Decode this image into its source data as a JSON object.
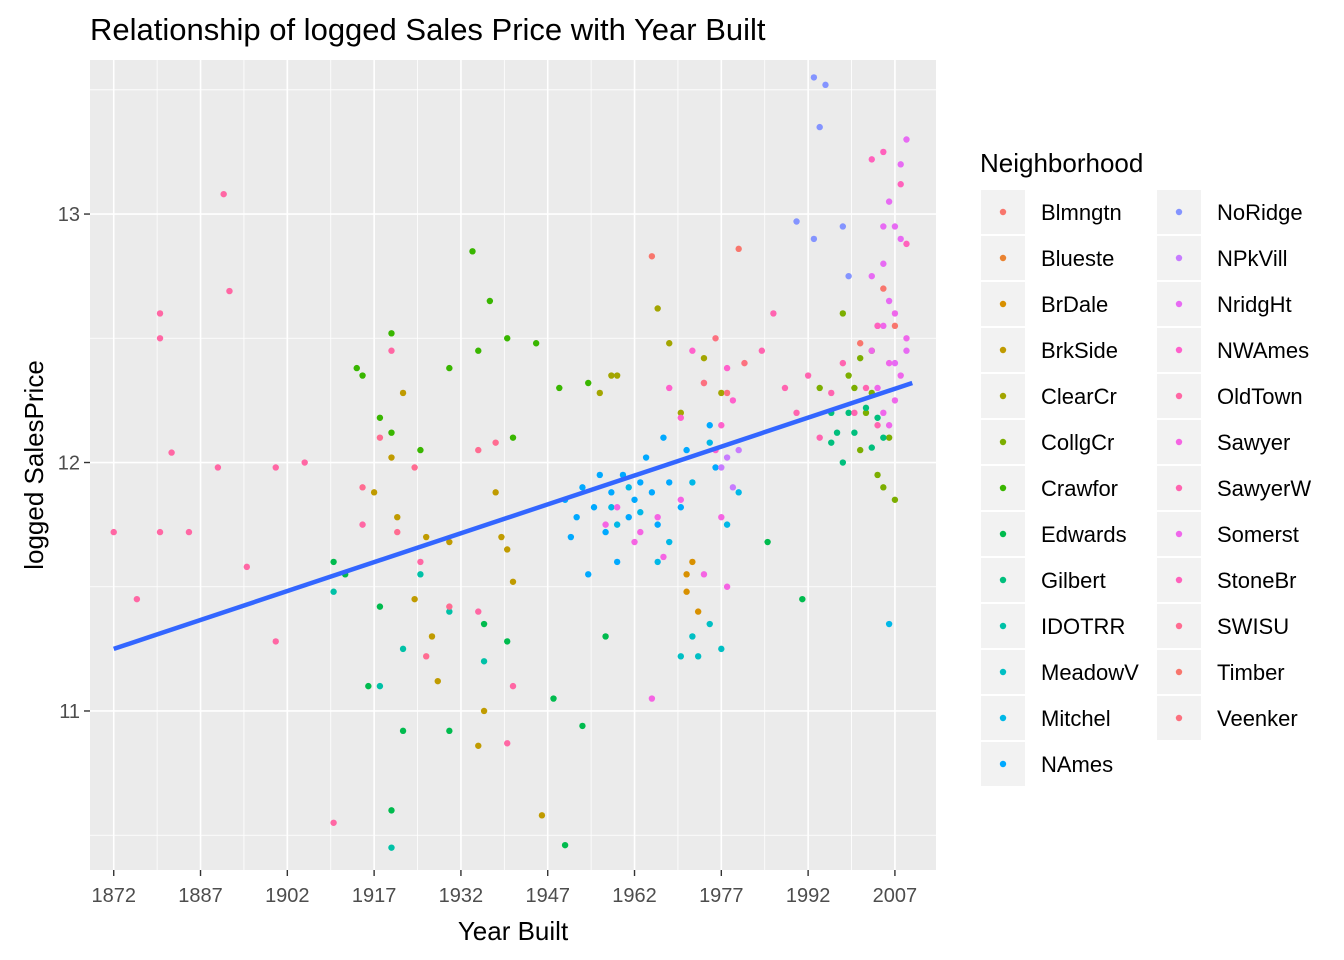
{
  "chart_data": {
    "type": "scatter",
    "title": "Relationship of logged Sales Price with Year Built",
    "xlabel": "Year Built",
    "ylabel": "logged SalesPrice",
    "xlim": [
      1867.9,
      2014.1
    ],
    "ylim": [
      10.36,
      13.62
    ],
    "x_ticks": [
      1872,
      1887,
      1902,
      1917,
      1932,
      1947,
      1962,
      1977,
      1992,
      2007
    ],
    "y_ticks": [
      11,
      12,
      13
    ],
    "grid": true,
    "legend_position": "right",
    "legend_title": "Neighborhood",
    "trend_line": {
      "color": "#3366ff",
      "points": [
        [
          1872,
          11.25
        ],
        [
          2010,
          12.32
        ]
      ]
    },
    "series": [
      {
        "name": "Blmngtn",
        "color": "#F8766D",
        "points": []
      },
      {
        "name": "Blueste",
        "color": "#EA8331",
        "points": []
      },
      {
        "name": "BrDale",
        "color": "#D89000",
        "points": [
          [
            1971,
            11.48
          ],
          [
            1971,
            11.55
          ],
          [
            1972,
            11.6
          ],
          [
            1973,
            11.4
          ]
        ]
      },
      {
        "name": "BrkSide",
        "color": "#C09B00",
        "points": [
          [
            1921,
            11.78
          ],
          [
            1922,
            12.28
          ],
          [
            1924,
            11.45
          ],
          [
            1926,
            11.7
          ],
          [
            1927,
            11.3
          ],
          [
            1928,
            11.12
          ],
          [
            1930,
            11.68
          ],
          [
            1935,
            10.86
          ],
          [
            1936,
            11
          ],
          [
            1938,
            11.88
          ],
          [
            1939,
            11.7
          ],
          [
            1940,
            11.65
          ],
          [
            1941,
            11.52
          ],
          [
            1946,
            10.58
          ],
          [
            1917,
            11.88
          ],
          [
            1920,
            12.02
          ]
        ]
      },
      {
        "name": "ClearCr",
        "color": "#A3A500",
        "points": [
          [
            1956,
            12.28
          ],
          [
            1958,
            12.35
          ],
          [
            1959,
            12.35
          ],
          [
            1966,
            12.62
          ],
          [
            1968,
            12.48
          ],
          [
            1970,
            12.2
          ],
          [
            1974,
            12.42
          ],
          [
            1977,
            12.28
          ]
        ]
      },
      {
        "name": "CollgCr",
        "color": "#7CAE00",
        "points": [
          [
            1994,
            12.3
          ],
          [
            1998,
            12.6
          ],
          [
            1999,
            12.35
          ],
          [
            2000,
            12.3
          ],
          [
            2001,
            12.42
          ],
          [
            2002,
            12.2
          ],
          [
            2003,
            12.28
          ],
          [
            2004,
            11.95
          ],
          [
            2005,
            11.9
          ],
          [
            2006,
            12.1
          ],
          [
            2007,
            11.85
          ],
          [
            2003,
            12.45
          ],
          [
            2001,
            12.05
          ]
        ]
      },
      {
        "name": "Crawfor",
        "color": "#39B600",
        "points": [
          [
            1914,
            12.38
          ],
          [
            1915,
            12.35
          ],
          [
            1918,
            12.18
          ],
          [
            1920,
            12.12
          ],
          [
            1925,
            12.05
          ],
          [
            1930,
            12.38
          ],
          [
            1934,
            12.85
          ],
          [
            1935,
            12.45
          ],
          [
            1937,
            12.65
          ],
          [
            1940,
            12.5
          ],
          [
            1941,
            12.1
          ],
          [
            1945,
            12.48
          ],
          [
            1949,
            12.3
          ],
          [
            1954,
            12.32
          ],
          [
            1920,
            12.52
          ]
        ]
      },
      {
        "name": "Edwards",
        "color": "#00BB4E",
        "points": [
          [
            1910,
            11.6
          ],
          [
            1912,
            11.55
          ],
          [
            1916,
            11.1
          ],
          [
            1918,
            11.42
          ],
          [
            1920,
            10.6
          ],
          [
            1922,
            10.92
          ],
          [
            1930,
            10.92
          ],
          [
            1936,
            11.35
          ],
          [
            1940,
            11.28
          ],
          [
            1948,
            11.05
          ],
          [
            1950,
            10.46
          ],
          [
            1953,
            10.94
          ],
          [
            1957,
            11.3
          ],
          [
            1985,
            11.68
          ],
          [
            1991,
            11.45
          ]
        ]
      },
      {
        "name": "Gilbert",
        "color": "#00BF7D",
        "points": [
          [
            1996,
            12.08
          ],
          [
            1997,
            12.12
          ],
          [
            1998,
            12
          ],
          [
            1999,
            12.2
          ],
          [
            2000,
            12.12
          ],
          [
            2002,
            12.22
          ],
          [
            2003,
            12.06
          ],
          [
            2004,
            12.18
          ],
          [
            2005,
            12.1
          ],
          [
            1996,
            12.2
          ]
        ]
      },
      {
        "name": "IDOTRR",
        "color": "#00C1A7",
        "points": [
          [
            1910,
            11.48
          ],
          [
            1918,
            11.1
          ],
          [
            1920,
            10.45
          ],
          [
            1922,
            11.25
          ],
          [
            1925,
            11.55
          ],
          [
            1930,
            11.4
          ],
          [
            1936,
            11.2
          ]
        ]
      },
      {
        "name": "MeadowV",
        "color": "#00BFC4",
        "points": [
          [
            1970,
            11.22
          ],
          [
            1972,
            11.3
          ],
          [
            1973,
            11.22
          ],
          [
            1975,
            11.35
          ],
          [
            1977,
            11.25
          ]
        ]
      },
      {
        "name": "Mitchel",
        "color": "#00B8E7",
        "points": [
          [
            1958,
            11.82
          ],
          [
            1959,
            11.75
          ],
          [
            1961,
            11.9
          ],
          [
            1963,
            11.8
          ],
          [
            1966,
            11.6
          ],
          [
            1968,
            11.68
          ],
          [
            1972,
            11.92
          ],
          [
            1975,
            12.08
          ],
          [
            1978,
            11.75
          ],
          [
            1980,
            11.88
          ],
          [
            2006,
            11.35
          ]
        ]
      },
      {
        "name": "NAmes",
        "color": "#00A9FF",
        "points": [
          [
            1950,
            11.85
          ],
          [
            1951,
            11.7
          ],
          [
            1952,
            11.78
          ],
          [
            1953,
            11.9
          ],
          [
            1954,
            11.55
          ],
          [
            1955,
            11.82
          ],
          [
            1956,
            11.95
          ],
          [
            1957,
            11.72
          ],
          [
            1958,
            11.88
          ],
          [
            1959,
            11.6
          ],
          [
            1960,
            11.95
          ],
          [
            1961,
            11.78
          ],
          [
            1962,
            11.85
          ],
          [
            1963,
            11.92
          ],
          [
            1964,
            12.02
          ],
          [
            1965,
            11.88
          ],
          [
            1966,
            11.75
          ],
          [
            1967,
            12.1
          ],
          [
            1968,
            11.92
          ],
          [
            1970,
            11.82
          ],
          [
            1971,
            12.05
          ],
          [
            1975,
            12.15
          ],
          [
            1976,
            11.98
          ]
        ]
      },
      {
        "name": "NoRidge",
        "color": "#8494FF",
        "points": [
          [
            1993,
            13.55
          ],
          [
            1995,
            13.52
          ],
          [
            1994,
            13.35
          ],
          [
            1998,
            12.95
          ],
          [
            1999,
            12.75
          ],
          [
            1990,
            12.97
          ],
          [
            1993,
            12.9
          ]
        ]
      },
      {
        "name": "NPkVill",
        "color": "#C77CFF",
        "points": [
          [
            1977,
            11.98
          ],
          [
            1978,
            12.02
          ],
          [
            1979,
            11.9
          ],
          [
            1980,
            12.05
          ]
        ]
      },
      {
        "name": "NridgHt",
        "color": "#E76BF3",
        "points": [
          [
            2003,
            12.75
          ],
          [
            2004,
            12.55
          ],
          [
            2005,
            12.8
          ],
          [
            2006,
            13.05
          ],
          [
            2007,
            12.95
          ],
          [
            2008,
            13.2
          ],
          [
            2009,
            13.3
          ],
          [
            2007,
            12.4
          ],
          [
            2006,
            12.65
          ],
          [
            2008,
            12.9
          ],
          [
            2009,
            12.45
          ],
          [
            2005,
            12.95
          ]
        ]
      },
      {
        "name": "NWAmes",
        "color": "#FF61CC",
        "points": [
          [
            1968,
            12.3
          ],
          [
            1970,
            12.18
          ],
          [
            1972,
            12.45
          ],
          [
            1974,
            12.32
          ],
          [
            1976,
            12.05
          ],
          [
            1977,
            12.15
          ],
          [
            1978,
            12.38
          ],
          [
            1979,
            12.25
          ]
        ]
      },
      {
        "name": "OldTown",
        "color": "#FF67A4",
        "points": [
          [
            1872,
            11.72
          ],
          [
            1880,
            12.6
          ],
          [
            1880,
            12.5
          ],
          [
            1882,
            12.04
          ],
          [
            1885,
            11.72
          ],
          [
            1891,
            13.08
          ],
          [
            1892,
            12.69
          ],
          [
            1890,
            11.98
          ],
          [
            1895,
            11.58
          ],
          [
            1900,
            11.28
          ],
          [
            1900,
            11.98
          ],
          [
            1905,
            12.0
          ],
          [
            1910,
            10.55
          ],
          [
            1915,
            11.75
          ],
          [
            1920,
            12.45
          ],
          [
            1925,
            11.6
          ],
          [
            1935,
            11.4
          ],
          [
            1940,
            10.87
          ],
          [
            1941,
            11.1
          ],
          [
            1880,
            11.72
          ],
          [
            1876,
            11.45
          ]
        ]
      },
      {
        "name": "Sawyer",
        "color": "#F564E3",
        "points": [
          [
            1957,
            11.75
          ],
          [
            1959,
            11.82
          ],
          [
            1962,
            11.68
          ],
          [
            1963,
            11.72
          ],
          [
            1965,
            11.05
          ],
          [
            1966,
            11.78
          ],
          [
            1967,
            11.62
          ],
          [
            1970,
            11.85
          ],
          [
            1974,
            11.55
          ],
          [
            1977,
            11.78
          ],
          [
            1978,
            11.5
          ]
        ]
      },
      {
        "name": "SawyerW",
        "color": "#FF64B0",
        "points": [
          [
            1984,
            12.45
          ],
          [
            1986,
            12.6
          ],
          [
            1988,
            12.3
          ],
          [
            1990,
            12.2
          ],
          [
            1992,
            12.35
          ],
          [
            1994,
            12.1
          ],
          [
            1996,
            12.28
          ],
          [
            1998,
            12.4
          ],
          [
            2000,
            12.2
          ],
          [
            2002,
            12.3
          ],
          [
            2004,
            12.15
          ]
        ]
      },
      {
        "name": "Somerst",
        "color": "#EF67EB",
        "points": [
          [
            2003,
            12.45
          ],
          [
            2004,
            12.3
          ],
          [
            2005,
            12.55
          ],
          [
            2006,
            12.4
          ],
          [
            2007,
            12.6
          ],
          [
            2008,
            12.35
          ],
          [
            2009,
            12.5
          ],
          [
            2005,
            12.2
          ],
          [
            2006,
            12.15
          ],
          [
            2007,
            12.25
          ]
        ]
      },
      {
        "name": "StoneBr",
        "color": "#FF62BC",
        "points": [
          [
            2003,
            13.22
          ],
          [
            2005,
            13.25
          ],
          [
            2008,
            13.12
          ],
          [
            2009,
            12.88
          ],
          [
            2004,
            12.55
          ]
        ]
      },
      {
        "name": "SWISU",
        "color": "#FF6C91",
        "points": [
          [
            1915,
            11.9
          ],
          [
            1918,
            12.1
          ],
          [
            1921,
            11.72
          ],
          [
            1924,
            11.98
          ],
          [
            1926,
            11.22
          ],
          [
            1930,
            11.42
          ],
          [
            1935,
            12.05
          ],
          [
            1938,
            12.08
          ]
        ]
      },
      {
        "name": "Timber",
        "color": "#F8766D",
        "points": [
          [
            1965,
            12.83
          ],
          [
            1980,
            12.86
          ],
          [
            2001,
            12.48
          ],
          [
            2005,
            12.7
          ],
          [
            2007,
            12.55
          ]
        ]
      },
      {
        "name": "Veenker",
        "color": "#FC717F",
        "points": [
          [
            1974,
            12.32
          ],
          [
            1976,
            12.5
          ],
          [
            1978,
            12.28
          ],
          [
            1981,
            12.4
          ]
        ]
      }
    ]
  }
}
